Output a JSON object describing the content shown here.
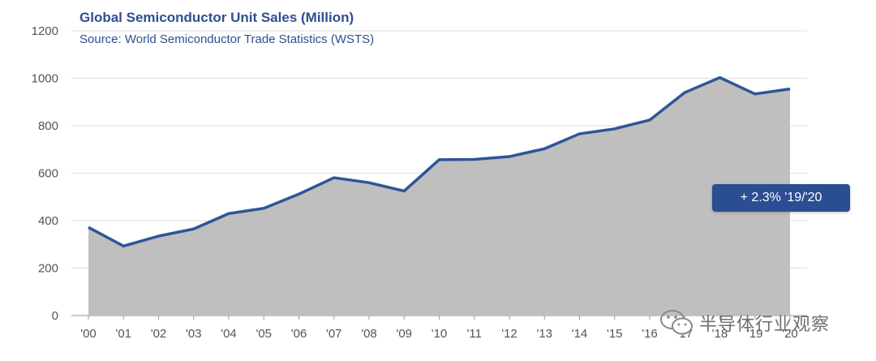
{
  "chart_data": {
    "type": "area",
    "title": "Global Semiconductor Unit Sales (Million)",
    "subtitle": "Source: World Semiconductor Trade Statistics (WSTS)",
    "categories": [
      "'00",
      "'01",
      "'02",
      "'03",
      "'04",
      "'05",
      "'06",
      "'07",
      "'08",
      "'09",
      "'10",
      "'11",
      "'12",
      "'13",
      "'14",
      "'15",
      "'16",
      "'17",
      "'18",
      "'19",
      "'20"
    ],
    "series": [
      {
        "name": "Unit Sales (Million)",
        "values": [
          372,
          293,
          335,
          365,
          430,
          452,
          512,
          581,
          560,
          525,
          657,
          658,
          670,
          703,
          766,
          787,
          824,
          940,
          1003,
          934,
          955
        ]
      }
    ],
    "y_ticks": [
      0,
      200,
      400,
      600,
      800,
      1000,
      1200
    ],
    "ylim": [
      0,
      1200
    ],
    "xlabel": "",
    "ylabel": "",
    "grid": true,
    "legend": "none",
    "annotation": "+ 2.3% '19/'20"
  },
  "colors": {
    "line": "#2f5597",
    "area": "#bfbfbf",
    "grid": "#dcdcdc",
    "title": "#2f4f8f",
    "callout_bg": "#2b4d93"
  },
  "watermark": {
    "text": "半导体行业观察",
    "icon": "wechat-icon"
  }
}
